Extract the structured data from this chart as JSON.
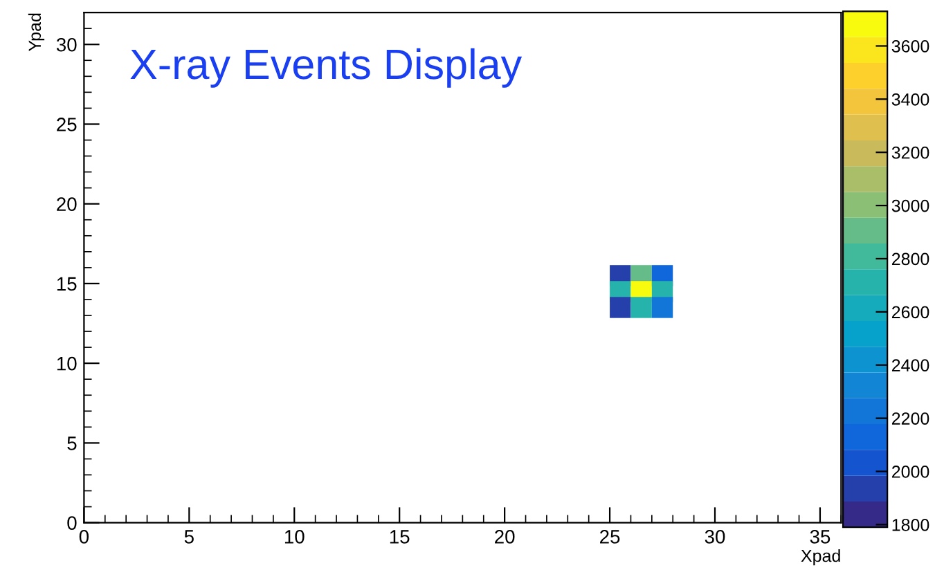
{
  "chart_data": {
    "type": "scatter",
    "title": "X-ray Events Display",
    "xlabel": "Xpad",
    "ylabel": "Ypad",
    "x": [
      25.5,
      26.5,
      27.5,
      25.5,
      26.5,
      27.5,
      25.5,
      26.5,
      27.5
    ],
    "values": [
      15.5,
      15.5,
      15.5,
      14.5,
      14.5,
      14.5,
      13.5,
      13.5,
      13.5
    ],
    "cvalues": [
      1900,
      2900,
      2100,
      2700,
      3650,
      2700,
      1900,
      2700,
      2200
    ],
    "marker": "square",
    "xlim": [
      0,
      36
    ],
    "xticks": [
      0,
      5,
      10,
      15,
      20,
      25,
      30,
      35
    ],
    "ylim": [
      0,
      32
    ],
    "yticks": [
      0,
      5,
      10,
      15,
      20,
      25,
      30
    ],
    "clim": [
      1790,
      3730
    ],
    "cticks": [
      1800,
      2000,
      2200,
      2400,
      2600,
      2800,
      3000,
      3200,
      3400,
      3600
    ],
    "grid": false
  }
}
